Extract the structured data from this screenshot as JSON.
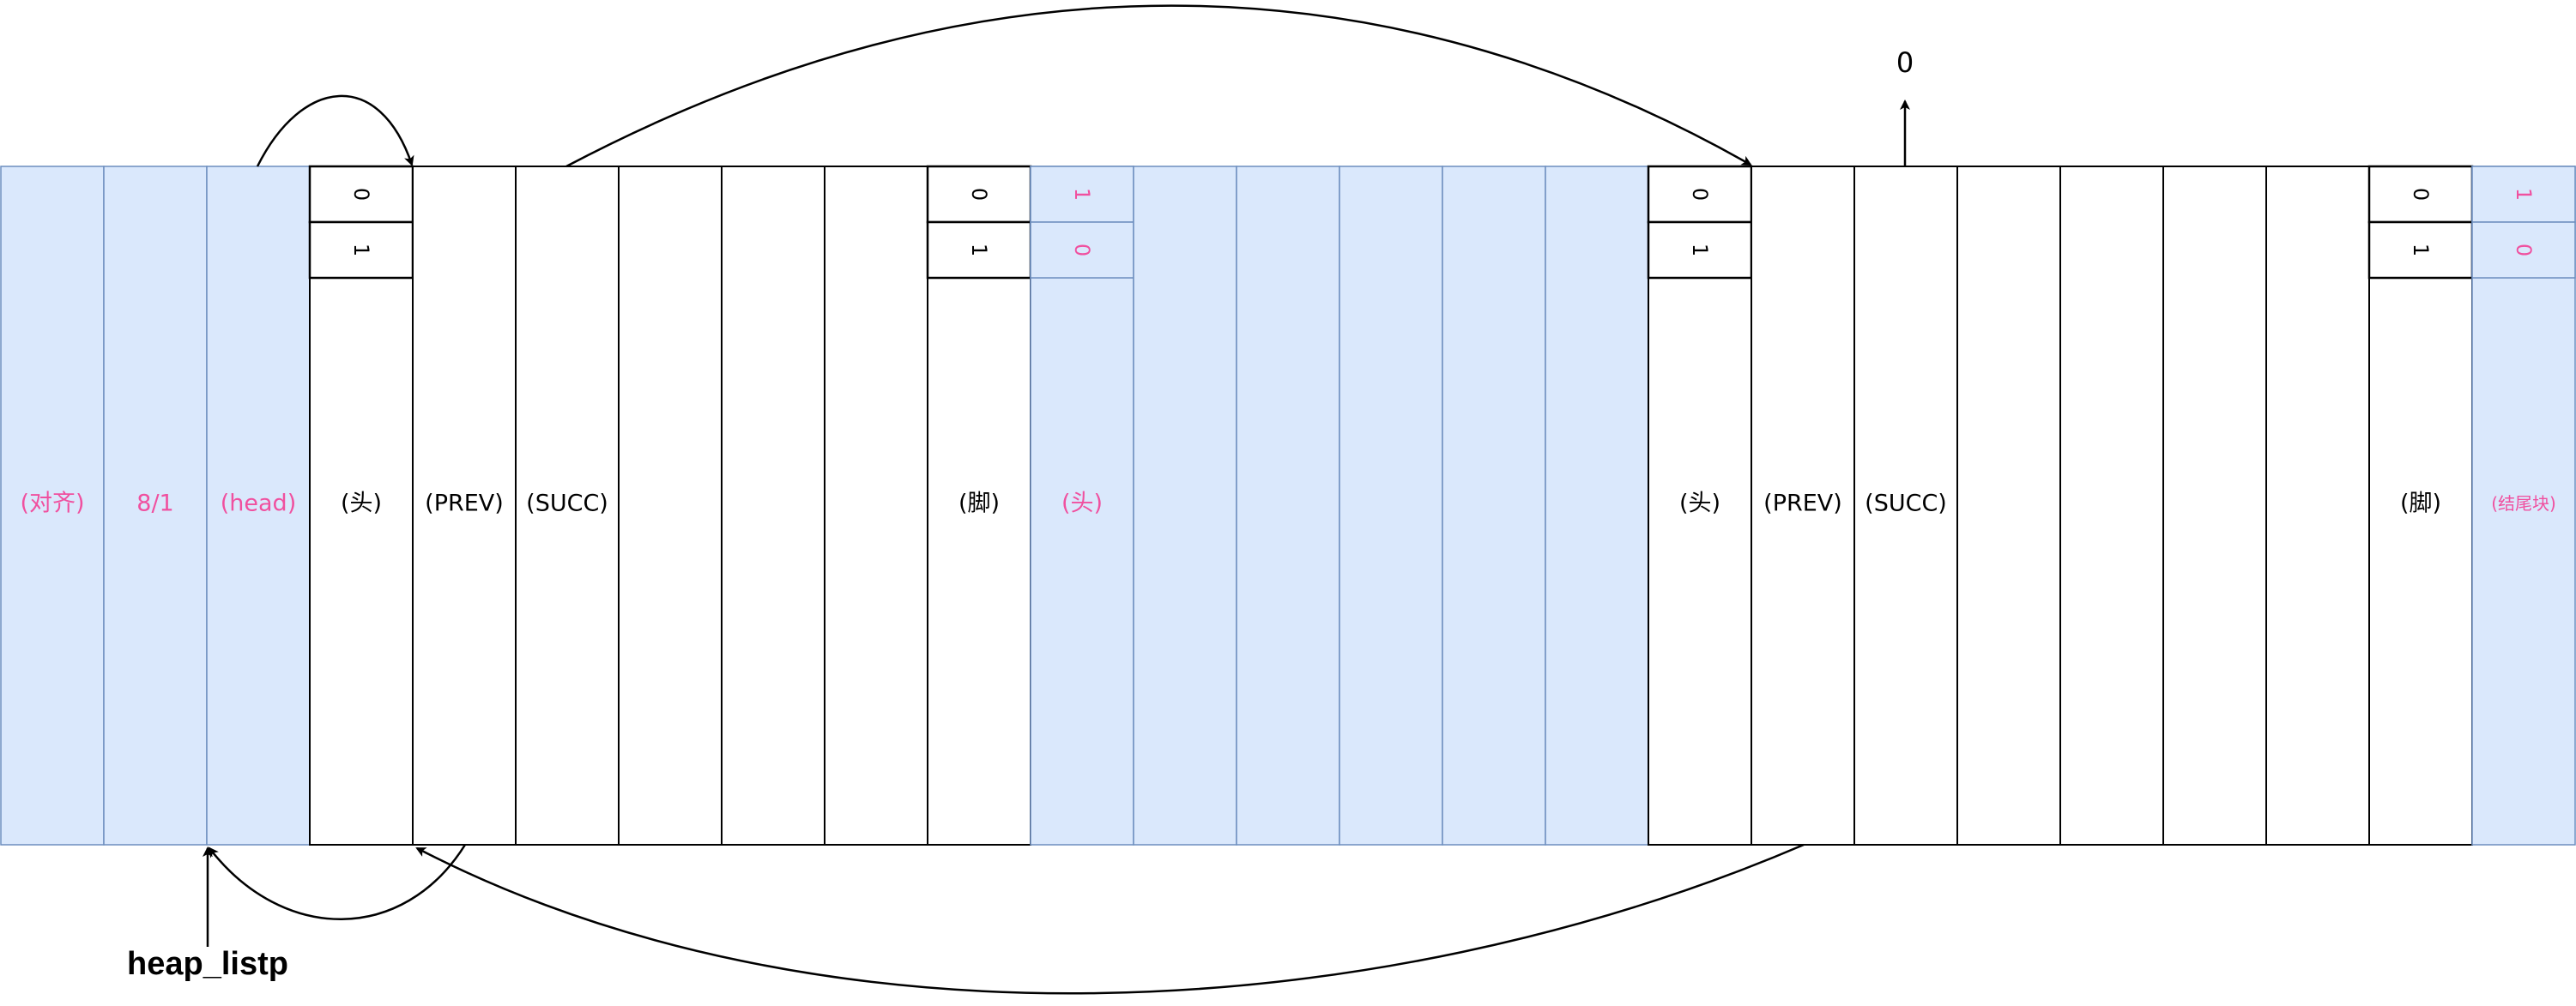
{
  "colors": {
    "padding_fill": "#dae8fc",
    "padding_stroke": "#6c8ebf",
    "pink_text": "#f0509f",
    "block_stroke": "#000000"
  },
  "cells": [
    {
      "type": "padding",
      "label": "(对齐)",
      "pink": true
    },
    {
      "type": "padding",
      "label": "8/1",
      "pink": true
    },
    {
      "type": "padding",
      "label": "(head)",
      "pink": true
    },
    {
      "type": "block",
      "label": "(头)",
      "bits": [
        "0",
        "1"
      ]
    },
    {
      "type": "block",
      "label": "(PREV)"
    },
    {
      "type": "block",
      "label": "(SUCC)"
    },
    {
      "type": "block",
      "label": ""
    },
    {
      "type": "block",
      "label": ""
    },
    {
      "type": "block",
      "label": ""
    },
    {
      "type": "block",
      "label": "(脚)",
      "bits": [
        "0",
        "1"
      ]
    },
    {
      "type": "padding",
      "label": "(头)",
      "pink": true,
      "bits": [
        "1",
        "0"
      ]
    },
    {
      "type": "padding",
      "label": ""
    },
    {
      "type": "padding",
      "label": ""
    },
    {
      "type": "padding",
      "label": ""
    },
    {
      "type": "padding",
      "label": ""
    },
    {
      "type": "padding",
      "label": ""
    },
    {
      "type": "block",
      "label": "(头)",
      "bits": [
        "0",
        "1"
      ]
    },
    {
      "type": "block",
      "label": "(PREV)"
    },
    {
      "type": "block",
      "label": "(SUCC)"
    },
    {
      "type": "block",
      "label": ""
    },
    {
      "type": "block",
      "label": ""
    },
    {
      "type": "block",
      "label": ""
    },
    {
      "type": "block",
      "label": ""
    },
    {
      "type": "block",
      "label": "(脚)",
      "bits": [
        "0",
        "1"
      ]
    },
    {
      "type": "padding",
      "label": "(结尾块)",
      "pink": true,
      "small": true,
      "bits": [
        "1",
        "0"
      ]
    }
  ],
  "annotations": {
    "pointer_label": "heap_listp",
    "null_label": "0"
  },
  "arrows": [
    {
      "name": "head-to-first-block-arrow"
    },
    {
      "name": "succ-to-second-block-arrow"
    },
    {
      "name": "prev-to-head-arrow"
    },
    {
      "name": "second-prev-to-first-block-arrow"
    },
    {
      "name": "second-succ-null-arrow"
    },
    {
      "name": "heap-listp-pointer-arrow"
    }
  ]
}
